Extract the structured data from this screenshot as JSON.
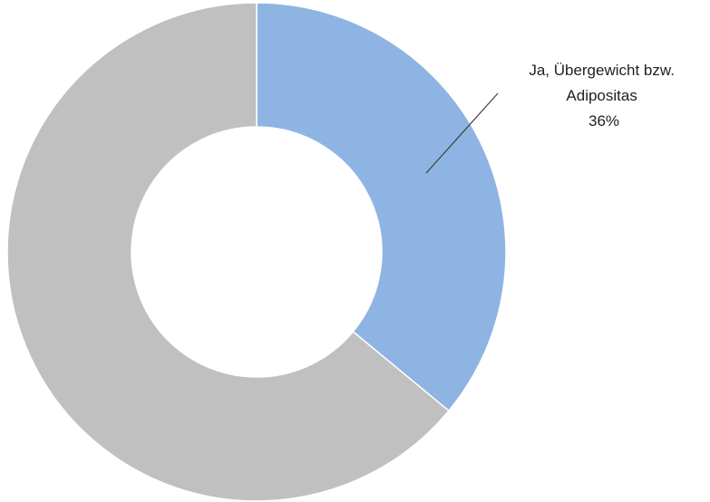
{
  "chart_data": {
    "type": "pie",
    "variant": "donut",
    "title": "",
    "slices": [
      {
        "value": 36,
        "color": "#8EB4E3",
        "label_lines": [
          "Ja, Übergewicht bzw.",
          "Adipositas",
          "36%"
        ]
      },
      {
        "value": 64,
        "color": "#C0C0C0",
        "label_lines": []
      }
    ],
    "legend": "none",
    "slice_border_color": "#FFFFFF",
    "leader_line_color": "#404040"
  }
}
